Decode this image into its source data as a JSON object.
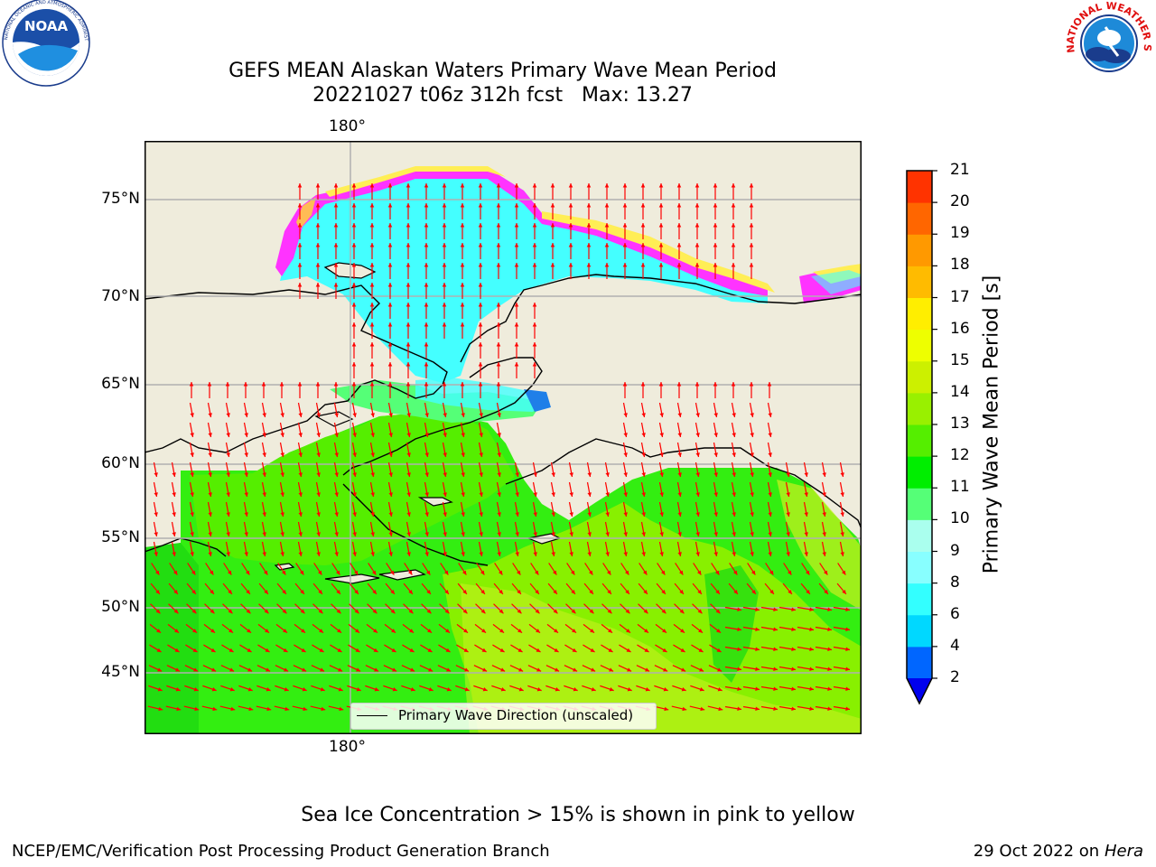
{
  "header": {
    "title_line1": "GEFS MEAN Alaskan Waters Primary Wave Mean Period",
    "title_line2": "20221027 t06z 312h fcst   Max: 13.27"
  },
  "logos": {
    "left": "NOAA",
    "left_ring_text": "NATIONAL OCEANIC AND ATMOSPHERIC ADMINISTRATION · U.S. DEPARTMENT OF COMMERCE",
    "right_ring_text": "NATIONAL WEATHER SERVICE"
  },
  "map": {
    "top_lon_label": "180°",
    "bottom_lon_label": "180°",
    "lat_labels": [
      "75°N",
      "70°N",
      "65°N",
      "60°N",
      "55°N",
      "50°N",
      "45°N"
    ],
    "legend_text": "Primary Wave Direction (unscaled)",
    "colors": {
      "land": "#efecdc",
      "ocean_green": "#33ee11",
      "ocean_lime": "#88f000",
      "ocean_yellow": "#ccf020",
      "ice_cyan": "#44ffff",
      "ice_magenta": "#ff33ff",
      "ice_yellow": "#ffee55",
      "arrow": "#ff0000",
      "grid": "#b0b0b0"
    }
  },
  "colorbar": {
    "label": "Primary Wave Mean Period [s]",
    "ticks": [
      "2",
      "4",
      "6",
      "8",
      "9",
      "10",
      "11",
      "12",
      "13",
      "14",
      "15",
      "16",
      "17",
      "18",
      "19",
      "20",
      "21"
    ],
    "colors": [
      "#0066ff",
      "#00d8ff",
      "#33ffff",
      "#88ffff",
      "#aaffee",
      "#55ff77",
      "#00ee00",
      "#55ee00",
      "#99f000",
      "#ccf000",
      "#eeff00",
      "#ffee00",
      "#ffbb00",
      "#ff9900",
      "#ff6600",
      "#ff3300"
    ],
    "extend_color": "#0000ee"
  },
  "footer": {
    "note": "Sea Ice Concentration > 15% is shown in pink to yellow",
    "left": "NCEP/EMC/Verification Post Processing Product Generation Branch",
    "right_date": "29 Oct 2022 on",
    "right_host": "Hera"
  }
}
